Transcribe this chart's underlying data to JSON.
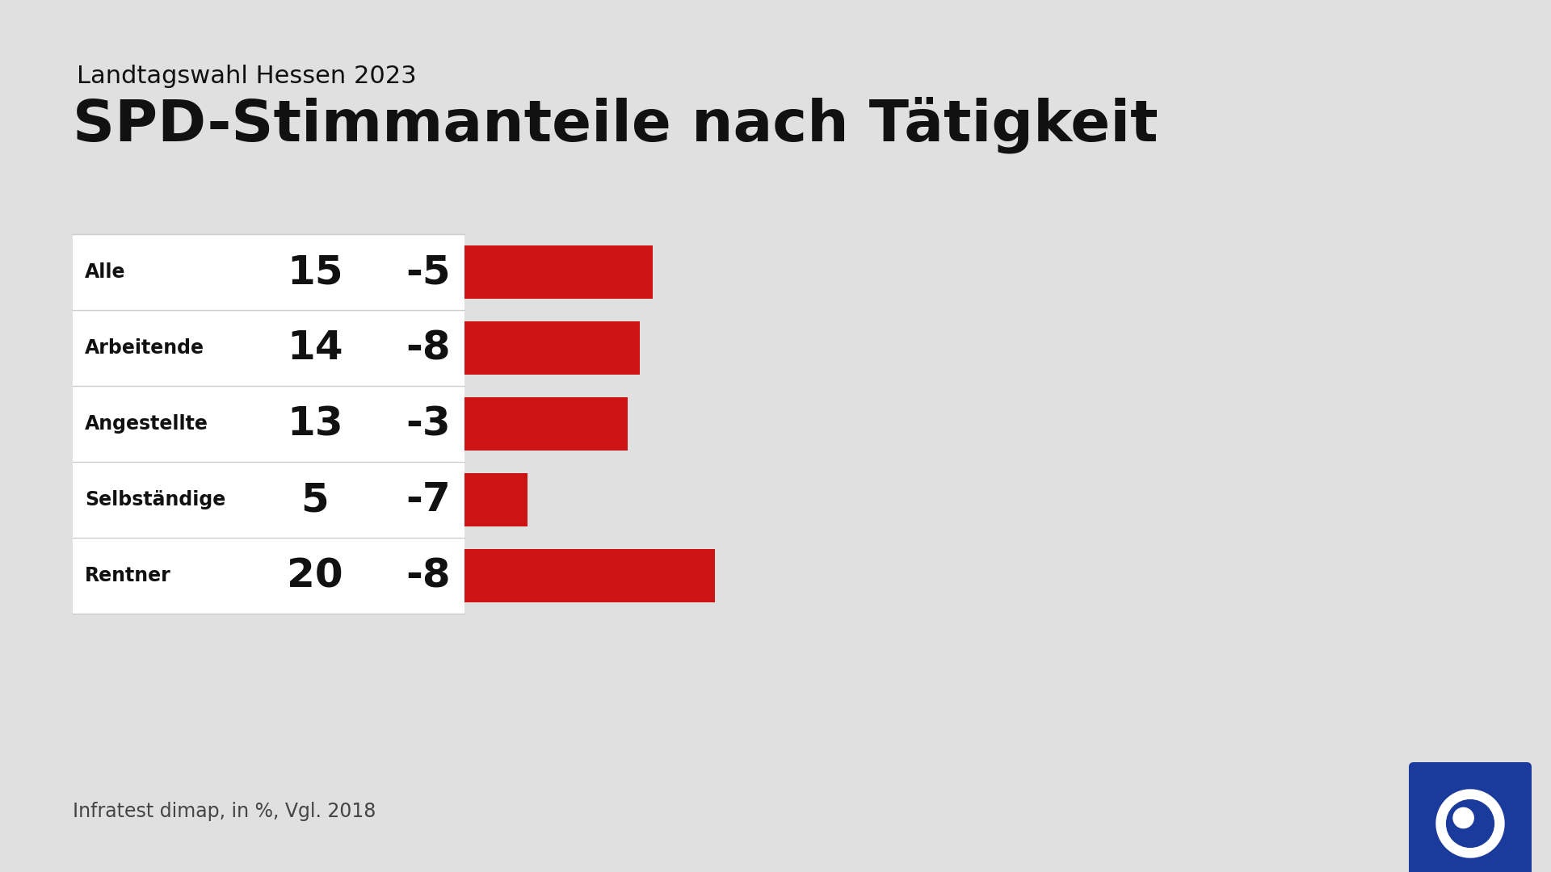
{
  "supertitle": "Landtagswahl Hessen 2023",
  "title": "SPD-Stimmanteile nach Tätigkeit",
  "categories": [
    "Alle",
    "Arbeitende",
    "Angestellte",
    "Selbständige",
    "Rentner"
  ],
  "current_values": [
    15,
    14,
    13,
    5,
    20
  ],
  "change_values": [
    -5,
    -8,
    -3,
    -7,
    -8
  ],
  "bar_color": "#cc1414",
  "bg_color": "#e0e0e0",
  "table_bg": "#ffffff",
  "separator_color": "#cccccc",
  "footer": "Infratest dimap, in %, Vgl. 2018",
  "label_fontsize": 17,
  "value_fontsize": 36,
  "change_fontsize": 36,
  "supertitle_fontsize": 22,
  "title_fontsize": 52,
  "footer_fontsize": 17,
  "text_color": "#111111",
  "footer_color": "#444444"
}
